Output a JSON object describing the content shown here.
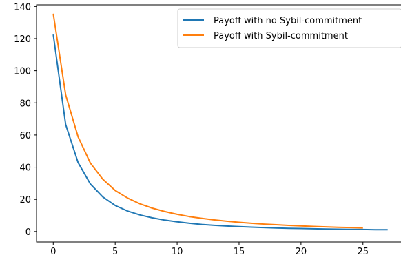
{
  "chart_data": {
    "type": "line",
    "title": "",
    "xlabel": "",
    "ylabel": "",
    "xlim": [
      -1.35,
      28.35
    ],
    "ylim": [
      -6.5,
      141
    ],
    "x_ticks": [
      0,
      5,
      10,
      15,
      20,
      25
    ],
    "y_ticks": [
      0,
      20,
      40,
      60,
      80,
      100,
      120,
      140
    ],
    "grid": false,
    "legend_position": "top-right",
    "series": [
      {
        "name": "Payoff with no Sybil-commitment",
        "color": "#1f77b4",
        "x": [
          0,
          1,
          2,
          3,
          4,
          5,
          6,
          7,
          8,
          9,
          10,
          11,
          12,
          13,
          14,
          15,
          16,
          17,
          18,
          19,
          20,
          21,
          22,
          23,
          24,
          25,
          26,
          27
        ],
        "values": [
          122.5,
          66.5,
          43.0,
          29.5,
          21.5,
          16.2,
          12.7,
          10.3,
          8.5,
          7.1,
          6.0,
          5.1,
          4.4,
          3.85,
          3.4,
          3.0,
          2.7,
          2.45,
          2.2,
          2.0,
          1.85,
          1.7,
          1.55,
          1.45,
          1.35,
          1.25,
          1.15,
          1.1
        ]
      },
      {
        "name": "Payoff with Sybil-commitment",
        "color": "#ff7f0e",
        "x": [
          0,
          1,
          2,
          3,
          4,
          5,
          6,
          7,
          8,
          9,
          10,
          11,
          12,
          13,
          14,
          15,
          16,
          17,
          18,
          19,
          20,
          21,
          22,
          23,
          24,
          25
        ],
        "values": [
          135.5,
          85.0,
          59.0,
          42.5,
          32.5,
          25.5,
          20.8,
          17.2,
          14.5,
          12.4,
          10.7,
          9.3,
          8.2,
          7.2,
          6.4,
          5.7,
          5.1,
          4.6,
          4.2,
          3.8,
          3.45,
          3.15,
          2.9,
          2.65,
          2.45,
          2.25
        ]
      }
    ]
  }
}
